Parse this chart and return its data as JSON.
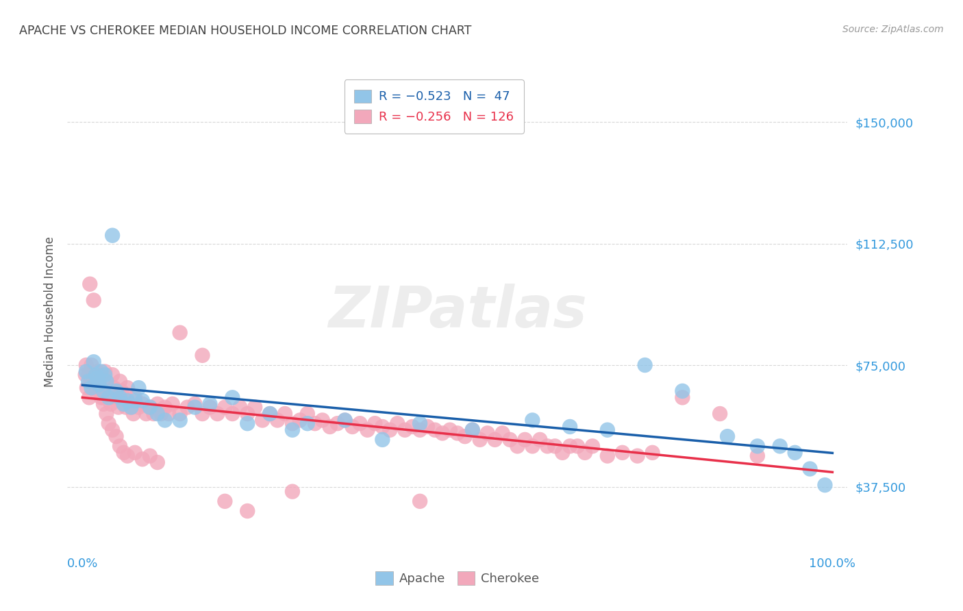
{
  "title": "APACHE VS CHEROKEE MEDIAN HOUSEHOLD INCOME CORRELATION CHART",
  "source": "Source: ZipAtlas.com",
  "ylabel": "Median Household Income",
  "x_tick_labels": [
    "0.0%",
    "100.0%"
  ],
  "y_tick_labels": [
    "$37,500",
    "$75,000",
    "$112,500",
    "$150,000"
  ],
  "y_tick_values": [
    37500,
    75000,
    112500,
    150000
  ],
  "xlim": [
    -0.02,
    1.02
  ],
  "ylim": [
    18000,
    165000
  ],
  "legend_label_apache": "Apache",
  "legend_label_cherokee": "Cherokee",
  "legend_r_apache": "R = −0.523",
  "legend_n_apache": "N =  47",
  "legend_r_cherokee": "R = −0.256",
  "legend_n_cherokee": "N = 126",
  "apache_color": "#92c5e8",
  "cherokee_color": "#f2a8bb",
  "apache_line_color": "#1a5faa",
  "cherokee_line_color": "#e8304a",
  "background_color": "#ffffff",
  "grid_color": "#d8d8d8",
  "title_color": "#404040",
  "axis_label_color": "#555555",
  "tick_label_color": "#3399dd",
  "watermark": "ZIPatlas",
  "apache_x": [
    0.005,
    0.008,
    0.012,
    0.015,
    0.018,
    0.02,
    0.022,
    0.025,
    0.028,
    0.03,
    0.032,
    0.035,
    0.04,
    0.045,
    0.05,
    0.055,
    0.06,
    0.065,
    0.07,
    0.075,
    0.08,
    0.09,
    0.1,
    0.11,
    0.13,
    0.15,
    0.17,
    0.2,
    0.22,
    0.25,
    0.28,
    0.3,
    0.35,
    0.4,
    0.45,
    0.52,
    0.6,
    0.65,
    0.7,
    0.75,
    0.8,
    0.86,
    0.9,
    0.93,
    0.95,
    0.97,
    0.99
  ],
  "apache_y": [
    73000,
    70000,
    68000,
    76000,
    72000,
    71000,
    69000,
    73000,
    67000,
    72000,
    70000,
    65000,
    115000,
    67000,
    65000,
    63000,
    64000,
    62000,
    64000,
    68000,
    64000,
    62000,
    60000,
    58000,
    58000,
    62000,
    63000,
    65000,
    57000,
    60000,
    55000,
    57000,
    58000,
    52000,
    57000,
    55000,
    58000,
    56000,
    55000,
    75000,
    67000,
    53000,
    50000,
    50000,
    48000,
    43000,
    38000
  ],
  "cherokee_x": [
    0.005,
    0.008,
    0.01,
    0.012,
    0.015,
    0.018,
    0.02,
    0.022,
    0.025,
    0.028,
    0.03,
    0.032,
    0.035,
    0.038,
    0.04,
    0.042,
    0.045,
    0.048,
    0.05,
    0.052,
    0.055,
    0.058,
    0.06,
    0.062,
    0.065,
    0.068,
    0.07,
    0.075,
    0.08,
    0.085,
    0.09,
    0.095,
    0.1,
    0.105,
    0.11,
    0.115,
    0.12,
    0.13,
    0.14,
    0.15,
    0.16,
    0.17,
    0.18,
    0.19,
    0.2,
    0.21,
    0.22,
    0.23,
    0.24,
    0.25,
    0.26,
    0.27,
    0.28,
    0.29,
    0.3,
    0.31,
    0.32,
    0.33,
    0.34,
    0.35,
    0.36,
    0.37,
    0.38,
    0.39,
    0.4,
    0.41,
    0.42,
    0.43,
    0.44,
    0.45,
    0.46,
    0.47,
    0.48,
    0.49,
    0.5,
    0.51,
    0.52,
    0.53,
    0.54,
    0.55,
    0.56,
    0.57,
    0.58,
    0.59,
    0.6,
    0.61,
    0.62,
    0.63,
    0.64,
    0.65,
    0.66,
    0.67,
    0.68,
    0.7,
    0.72,
    0.74,
    0.76,
    0.8,
    0.85,
    0.9,
    0.004,
    0.006,
    0.009,
    0.012,
    0.015,
    0.018,
    0.022,
    0.025,
    0.028,
    0.032,
    0.035,
    0.04,
    0.045,
    0.05,
    0.055,
    0.06,
    0.07,
    0.08,
    0.09,
    0.1,
    0.13,
    0.16,
    0.19,
    0.22,
    0.28,
    0.45
  ],
  "cherokee_y": [
    75000,
    72000,
    100000,
    70000,
    95000,
    67000,
    73000,
    70000,
    68000,
    65000,
    73000,
    70000,
    65000,
    63000,
    72000,
    68000,
    65000,
    62000,
    70000,
    67000,
    65000,
    62000,
    68000,
    63000,
    62000,
    60000,
    65000,
    62000,
    63000,
    60000,
    62000,
    60000,
    63000,
    60000,
    62000,
    60000,
    63000,
    60000,
    62000,
    63000,
    60000,
    62000,
    60000,
    62000,
    60000,
    62000,
    60000,
    62000,
    58000,
    60000,
    58000,
    60000,
    57000,
    58000,
    60000,
    57000,
    58000,
    56000,
    57000,
    58000,
    56000,
    57000,
    55000,
    57000,
    56000,
    55000,
    57000,
    55000,
    56000,
    55000,
    56000,
    55000,
    54000,
    55000,
    54000,
    53000,
    55000,
    52000,
    54000,
    52000,
    54000,
    52000,
    50000,
    52000,
    50000,
    52000,
    50000,
    50000,
    48000,
    50000,
    50000,
    48000,
    50000,
    47000,
    48000,
    47000,
    48000,
    65000,
    60000,
    47000,
    72000,
    68000,
    65000,
    75000,
    72000,
    70000,
    68000,
    65000,
    63000,
    60000,
    57000,
    55000,
    53000,
    50000,
    48000,
    47000,
    48000,
    46000,
    47000,
    45000,
    85000,
    78000,
    33000,
    30000,
    36000,
    33000
  ]
}
